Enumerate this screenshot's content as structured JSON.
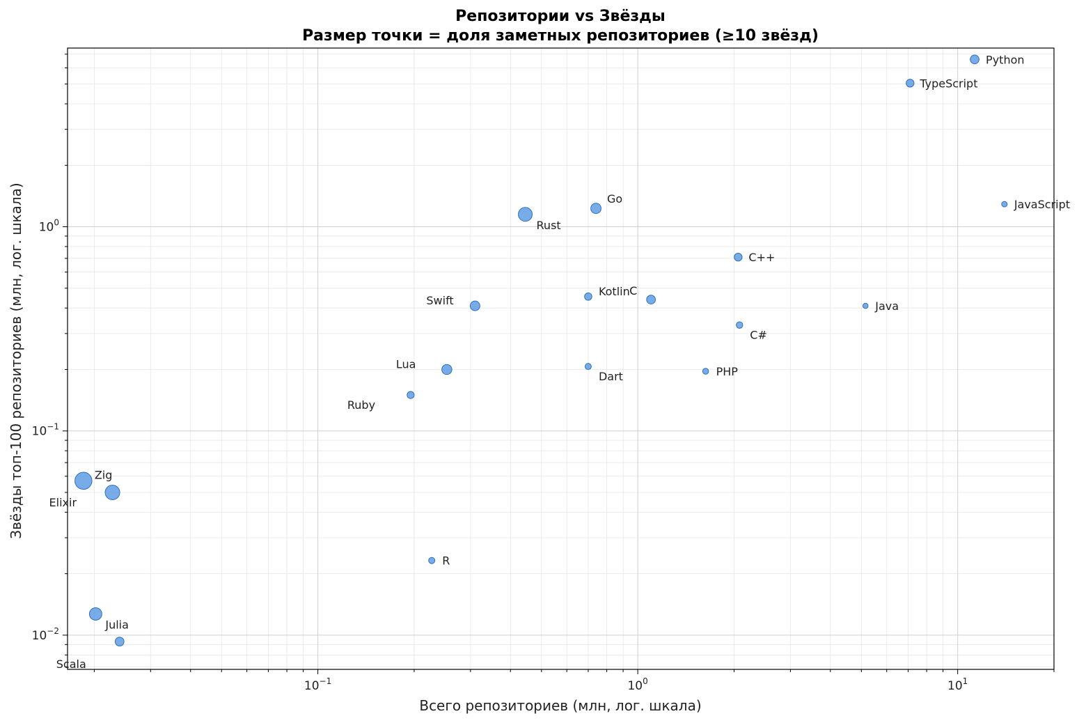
{
  "chart_data": {
    "type": "scatter",
    "title": "Репозитории vs Звёзды",
    "subtitle": "Размер точки = доля заметных репозиториев (≥10 звёзд)",
    "xlabel": "Всего репозиториев (млн, лог. шкала)",
    "ylabel": "Звёзды топ-100 репозиториев (млн, лог. шкала)",
    "xscale": "log",
    "yscale": "log",
    "xlim": [
      0.0165,
      20
    ],
    "ylim": [
      0.0068,
      7.5
    ],
    "grid": true,
    "x_tick_labels": [
      {
        "base": "10",
        "exp": "−1",
        "value": 0.1
      },
      {
        "base": "10",
        "exp": "0",
        "value": 1
      },
      {
        "base": "10",
        "exp": "1",
        "value": 10
      }
    ],
    "y_tick_labels": [
      {
        "base": "10",
        "exp": "−2",
        "value": 0.01
      },
      {
        "base": "10",
        "exp": "−1",
        "value": 0.1
      },
      {
        "base": "10",
        "exp": "0",
        "value": 1
      }
    ],
    "marker_color": "#4a90e2",
    "points": [
      {
        "label": "Python",
        "x": 11.3,
        "y": 6.6,
        "size": 40
      },
      {
        "label": "TypeScript",
        "x": 7.1,
        "y": 5.05,
        "size": 32
      },
      {
        "label": "JavaScript",
        "x": 14.0,
        "y": 1.29,
        "size": 16
      },
      {
        "label": "Go",
        "x": 0.74,
        "y": 1.23,
        "size": 55
      },
      {
        "label": "Rust",
        "x": 0.445,
        "y": 1.15,
        "size": 100
      },
      {
        "label": "C++",
        "x": 2.06,
        "y": 0.71,
        "size": 32
      },
      {
        "label": "C",
        "x": 1.1,
        "y": 0.44,
        "size": 40
      },
      {
        "label": "Kotlin",
        "x": 0.7,
        "y": 0.455,
        "size": 28
      },
      {
        "label": "Swift",
        "x": 0.31,
        "y": 0.41,
        "size": 48
      },
      {
        "label": "Java",
        "x": 5.15,
        "y": 0.41,
        "size": 14
      },
      {
        "label": "C#",
        "x": 2.08,
        "y": 0.33,
        "size": 22
      },
      {
        "label": "Lua",
        "x": 0.253,
        "y": 0.2,
        "size": 52
      },
      {
        "label": "Dart",
        "x": 0.7,
        "y": 0.207,
        "size": 20
      },
      {
        "label": "PHP",
        "x": 1.63,
        "y": 0.196,
        "size": 18
      },
      {
        "label": "Ruby",
        "x": 0.195,
        "y": 0.15,
        "size": 26
      },
      {
        "label": "Zig",
        "x": 0.0185,
        "y": 0.057,
        "size": 150
      },
      {
        "label": "Elixir",
        "x": 0.0228,
        "y": 0.05,
        "size": 110
      },
      {
        "label": "R",
        "x": 0.227,
        "y": 0.0232,
        "size": 20
      },
      {
        "label": "Julia",
        "x": 0.0202,
        "y": 0.0127,
        "size": 80
      },
      {
        "label": "Scala",
        "x": 0.024,
        "y": 0.0093,
        "size": 40
      }
    ]
  }
}
